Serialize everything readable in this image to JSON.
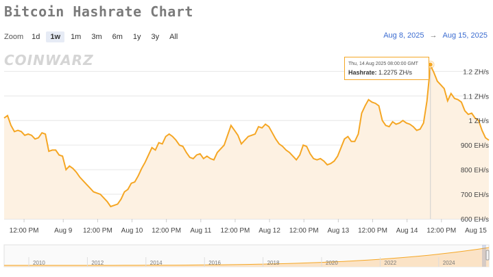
{
  "title": "Bitcoin Hashrate Chart",
  "zoom": {
    "label": "Zoom",
    "options": [
      "1d",
      "1w",
      "1m",
      "3m",
      "6m",
      "1y",
      "3y",
      "All"
    ],
    "active": "1w"
  },
  "range": {
    "from": "Aug 8, 2025",
    "arrow": "→",
    "to": "Aug 15, 2025"
  },
  "watermark": "COINWARZ",
  "tooltip": {
    "time": "Thu, 14 Aug 2025 08:00:00 GMT",
    "label": "Hashrate:",
    "value": "1.2275 ZH/s"
  },
  "colors": {
    "line": "#f5a623",
    "area": "#fdf1e2",
    "navigator_area": "#fbe3c6",
    "link": "#3a6bd0"
  },
  "chart_data": {
    "type": "area",
    "title": "Bitcoin Hashrate Chart",
    "y_unit": "EH/s",
    "ylim": [
      600,
      1290
    ],
    "xlim": [
      0,
      7.05
    ],
    "yticks": [
      {
        "v": 600,
        "label": "600 EH/s"
      },
      {
        "v": 700,
        "label": "700 EH/s"
      },
      {
        "v": 800,
        "label": "800 EH/s"
      },
      {
        "v": 900,
        "label": "900 EH/s"
      },
      {
        "v": 1000,
        "label": "1 ZH/s"
      },
      {
        "v": 1100,
        "label": "1.1 ZH/s"
      },
      {
        "v": 1200,
        "label": "1.2 ZH/s"
      }
    ],
    "xticks": [
      {
        "v": 0.29,
        "label": "12:00 PM"
      },
      {
        "v": 0.86,
        "label": "Aug 9"
      },
      {
        "v": 1.36,
        "label": "12:00 PM"
      },
      {
        "v": 1.86,
        "label": "Aug 10"
      },
      {
        "v": 2.36,
        "label": "12:00 PM"
      },
      {
        "v": 2.86,
        "label": "Aug 11"
      },
      {
        "v": 3.36,
        "label": "12:00 PM"
      },
      {
        "v": 3.86,
        "label": "Aug 12"
      },
      {
        "v": 4.36,
        "label": "12:00 PM"
      },
      {
        "v": 4.86,
        "label": "Aug 13"
      },
      {
        "v": 5.36,
        "label": "12:00 PM"
      },
      {
        "v": 5.86,
        "label": "Aug 14"
      },
      {
        "v": 6.36,
        "label": "12:00 PM"
      },
      {
        "v": 6.86,
        "label": "Aug 15"
      }
    ],
    "series": [
      {
        "values": [
          [
            0.0,
            1010
          ],
          [
            0.05,
            1020
          ],
          [
            0.1,
            980
          ],
          [
            0.15,
            955
          ],
          [
            0.2,
            960
          ],
          [
            0.25,
            955
          ],
          [
            0.3,
            940
          ],
          [
            0.35,
            945
          ],
          [
            0.4,
            940
          ],
          [
            0.45,
            925
          ],
          [
            0.5,
            930
          ],
          [
            0.55,
            950
          ],
          [
            0.6,
            945
          ],
          [
            0.65,
            875
          ],
          [
            0.7,
            880
          ],
          [
            0.75,
            880
          ],
          [
            0.8,
            860
          ],
          [
            0.85,
            855
          ],
          [
            0.9,
            800
          ],
          [
            0.95,
            815
          ],
          [
            1.0,
            805
          ],
          [
            1.05,
            790
          ],
          [
            1.1,
            770
          ],
          [
            1.15,
            755
          ],
          [
            1.2,
            740
          ],
          [
            1.25,
            725
          ],
          [
            1.3,
            710
          ],
          [
            1.35,
            705
          ],
          [
            1.4,
            700
          ],
          [
            1.45,
            685
          ],
          [
            1.5,
            670
          ],
          [
            1.55,
            650
          ],
          [
            1.6,
            655
          ],
          [
            1.65,
            660
          ],
          [
            1.7,
            680
          ],
          [
            1.75,
            710
          ],
          [
            1.8,
            720
          ],
          [
            1.85,
            745
          ],
          [
            1.9,
            750
          ],
          [
            1.95,
            775
          ],
          [
            2.0,
            805
          ],
          [
            2.05,
            830
          ],
          [
            2.1,
            860
          ],
          [
            2.15,
            890
          ],
          [
            2.2,
            880
          ],
          [
            2.25,
            910
          ],
          [
            2.3,
            905
          ],
          [
            2.35,
            935
          ],
          [
            2.4,
            945
          ],
          [
            2.45,
            935
          ],
          [
            2.5,
            920
          ],
          [
            2.55,
            900
          ],
          [
            2.6,
            895
          ],
          [
            2.65,
            870
          ],
          [
            2.7,
            850
          ],
          [
            2.75,
            845
          ],
          [
            2.8,
            860
          ],
          [
            2.85,
            865
          ],
          [
            2.9,
            845
          ],
          [
            2.95,
            855
          ],
          [
            3.0,
            845
          ],
          [
            3.05,
            840
          ],
          [
            3.1,
            870
          ],
          [
            3.15,
            885
          ],
          [
            3.2,
            900
          ],
          [
            3.25,
            940
          ],
          [
            3.3,
            980
          ],
          [
            3.35,
            960
          ],
          [
            3.4,
            940
          ],
          [
            3.45,
            905
          ],
          [
            3.5,
            920
          ],
          [
            3.55,
            935
          ],
          [
            3.6,
            940
          ],
          [
            3.65,
            945
          ],
          [
            3.7,
            975
          ],
          [
            3.75,
            970
          ],
          [
            3.8,
            985
          ],
          [
            3.85,
            975
          ],
          [
            3.9,
            950
          ],
          [
            3.95,
            925
          ],
          [
            4.0,
            905
          ],
          [
            4.05,
            895
          ],
          [
            4.1,
            880
          ],
          [
            4.15,
            870
          ],
          [
            4.2,
            855
          ],
          [
            4.25,
            840
          ],
          [
            4.3,
            860
          ],
          [
            4.35,
            900
          ],
          [
            4.4,
            895
          ],
          [
            4.45,
            865
          ],
          [
            4.5,
            845
          ],
          [
            4.55,
            840
          ],
          [
            4.6,
            845
          ],
          [
            4.65,
            835
          ],
          [
            4.7,
            820
          ],
          [
            4.75,
            825
          ],
          [
            4.8,
            835
          ],
          [
            4.85,
            855
          ],
          [
            4.9,
            890
          ],
          [
            4.95,
            925
          ],
          [
            5.0,
            935
          ],
          [
            5.05,
            915
          ],
          [
            5.1,
            915
          ],
          [
            5.15,
            945
          ],
          [
            5.2,
            1030
          ],
          [
            5.25,
            1060
          ],
          [
            5.3,
            1085
          ],
          [
            5.35,
            1075
          ],
          [
            5.4,
            1070
          ],
          [
            5.45,
            1060
          ],
          [
            5.5,
            1000
          ],
          [
            5.55,
            980
          ],
          [
            5.6,
            975
          ],
          [
            5.65,
            995
          ],
          [
            5.7,
            985
          ],
          [
            5.75,
            990
          ],
          [
            5.8,
            1000
          ],
          [
            5.85,
            990
          ],
          [
            5.9,
            985
          ],
          [
            5.95,
            975
          ],
          [
            6.0,
            960
          ],
          [
            6.05,
            965
          ],
          [
            6.1,
            990
          ],
          [
            6.15,
            1080
          ],
          [
            6.2,
            1225
          ],
          [
            6.25,
            1195
          ],
          [
            6.3,
            1160
          ],
          [
            6.35,
            1145
          ],
          [
            6.4,
            1130
          ],
          [
            6.45,
            1080
          ],
          [
            6.5,
            1110
          ],
          [
            6.55,
            1090
          ],
          [
            6.6,
            1085
          ],
          [
            6.65,
            1075
          ],
          [
            6.7,
            1040
          ],
          [
            6.75,
            1025
          ],
          [
            6.8,
            1030
          ],
          [
            6.85,
            1010
          ],
          [
            6.9,
            1000
          ],
          [
            6.95,
            960
          ],
          [
            7.0,
            930
          ],
          [
            7.05,
            920
          ]
        ]
      }
    ],
    "tooltip_point": [
      6.2,
      1227.5
    ],
    "navigator": {
      "years": [
        "2010",
        "2012",
        "2014",
        "2016",
        "2018",
        "2020",
        "2022",
        "2024"
      ]
    }
  }
}
